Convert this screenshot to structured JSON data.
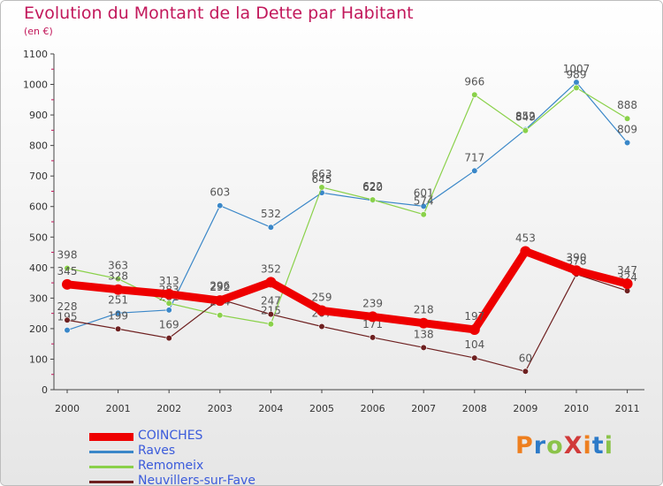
{
  "title": "Evolution du Montant de la Dette par Habitant",
  "unit_label": "(en €)",
  "logo_text": "ProXiti",
  "logo_colors": [
    "#ee7f1f",
    "#2c7ac8",
    "#8bc34a",
    "#d13a3a",
    "#ee7f1f",
    "#2c7ac8",
    "#8bc34a"
  ],
  "chart_data": {
    "type": "line",
    "title": "Evolution du Montant de la Dette par Habitant",
    "ylabel": "(en €)",
    "xlabel": "",
    "x": [
      "2000",
      "2001",
      "2002",
      "2003",
      "2004",
      "2005",
      "2006",
      "2007",
      "2008",
      "2009",
      "2010",
      "2011"
    ],
    "ylim": [
      0,
      1100
    ],
    "yticks": [
      0,
      100,
      200,
      300,
      400,
      500,
      600,
      700,
      800,
      900,
      1000,
      1100
    ],
    "grid": false,
    "legend_position": "bottom-left",
    "series": [
      {
        "name": "Raves",
        "color": "#3a87c8",
        "values": [
          195,
          251,
          261,
          603,
          532,
          645,
          620,
          601,
          717,
          852,
          1007,
          809
        ],
        "labels": [
          "195",
          "251",
          "261",
          "603",
          "532",
          "645",
          "620",
          "601",
          "717",
          "852",
          "1007",
          "809"
        ]
      },
      {
        "name": "Remomeix",
        "color": "#8ad14a",
        "values": [
          398,
          363,
          283,
          244,
          215,
          663,
          622,
          574,
          966,
          849,
          989,
          888
        ],
        "labels": [
          "398",
          "363",
          "283",
          "244",
          "215",
          "663",
          "622",
          "574",
          "966",
          "849",
          "989",
          "888"
        ]
      },
      {
        "name": "Neuvillers-sur-Fave",
        "color": "#6e2020",
        "values": [
          228,
          199,
          169,
          296,
          247,
          207,
          171,
          138,
          104,
          60,
          378,
          324
        ],
        "labels": [
          "228",
          "199",
          "169",
          "296",
          "247",
          "207",
          "171",
          "138",
          "104",
          "60",
          "378",
          "324"
        ]
      },
      {
        "name": "COINCHES",
        "color": "#ee0000",
        "values": [
          345,
          328,
          313,
          292,
          352,
          259,
          239,
          218,
          197,
          453,
          390,
          347
        ],
        "labels": [
          "345",
          "328",
          "313",
          "292",
          "352",
          "259",
          "239",
          "218",
          "197",
          "453",
          "390",
          "347"
        ]
      }
    ],
    "legend": [
      "COINCHES",
      "Raves",
      "Remomeix",
      "Neuvillers-sur-Fave"
    ]
  }
}
